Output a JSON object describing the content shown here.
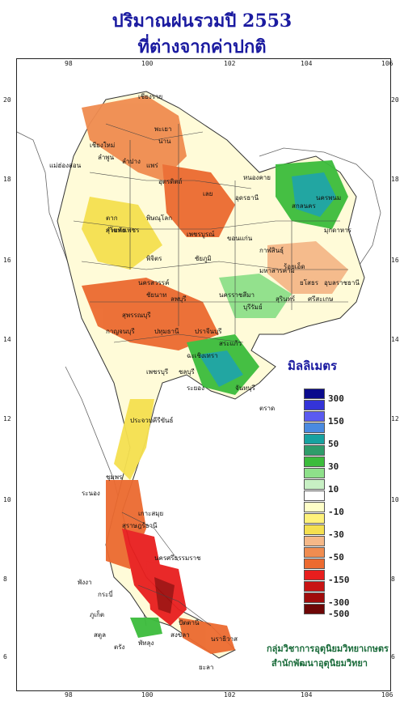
{
  "title_line1": "ปริมาณฝนรวมปี  2553",
  "title_line2": "ที่ต่างจากค่าปกติ",
  "axes": {
    "x_ticks": [
      "98",
      "100",
      "102",
      "104",
      "106"
    ],
    "y_ticks": [
      "20",
      "18",
      "16",
      "14",
      "12",
      "10",
      "8",
      "6"
    ]
  },
  "legend": {
    "title": "มิลลิเมตร",
    "levels": [
      {
        "label": "300",
        "color": "#0a0a8c"
      },
      {
        "label": "",
        "color": "#3434d8"
      },
      {
        "label": "150",
        "color": "#5a5af0"
      },
      {
        "label": "",
        "color": "#4a8ae0"
      },
      {
        "label": "50",
        "color": "#17a2a0"
      },
      {
        "label": "",
        "color": "#2f9c6a"
      },
      {
        "label": "30",
        "color": "#3cbc3c"
      },
      {
        "label": "",
        "color": "#8ee08a"
      },
      {
        "label": "10",
        "color": "#c8f0c4"
      },
      {
        "label": "",
        "color": "#ffffff"
      },
      {
        "label": "-10",
        "color": "#ffffc8"
      },
      {
        "label": "",
        "color": "#fff27a"
      },
      {
        "label": "-30",
        "color": "#f5e050"
      },
      {
        "label": "",
        "color": "#f5b888"
      },
      {
        "label": "-50",
        "color": "#f08c50"
      },
      {
        "label": "",
        "color": "#ec6a30"
      },
      {
        "label": "-150",
        "color": "#e81e1e"
      },
      {
        "label": "",
        "color": "#c81414"
      },
      {
        "label": "-300",
        "color": "#a00c0c"
      },
      {
        "label": "-500",
        "color": "#6e0606"
      }
    ]
  },
  "credit_line1": "กลุ่มวิชาการอุตุนิยมวิทยาเกษตร",
  "credit_line2": "สำนักพัฒนาอุตุนิยมวิทยา",
  "places": [
    "เชียงราย",
    "เชียงใหม่",
    "ลำพูน",
    "ลำปาง",
    "พะเยา",
    "น่าน",
    "แพร่",
    "อุตรดิตถ์",
    "แม่ฮ่องสอน",
    "ตาก",
    "สุโขทัย",
    "พิษณุโลก",
    "เพชรบูรณ์",
    "เลย",
    "หนองคาย",
    "อุดรธานี",
    "สกลนคร",
    "นครพนม",
    "มุกดาหาร",
    "ขอนแก่น",
    "กาฬสินธุ์",
    "ชัยภูมิ",
    "มหาสารคาม",
    "ร้อยเอ็ด",
    "ยโสธร",
    "อุบลราชธานี",
    "นครราชสีมา",
    "บุรีรัมย์",
    "สุรินทร์",
    "ศรีสะเกษ",
    "นครสวรรค์",
    "ลพบุรี",
    "กำแพงเพชร",
    "พิจิตร",
    "ชัยนาท",
    "สุพรรณบุรี",
    "กาญจนบุรี",
    "ปทุมธานี",
    "ปราจีนบุรี",
    "สระแก้ว",
    "ฉะเชิงเทรา",
    "ชลบุรี",
    "ระยอง",
    "จันทบุรี",
    "ตราด",
    "เพชรบุรี",
    "ประจวบคีรีขันธ์",
    "ชุมพร",
    "ระนอง",
    "สุราษฎร์ธานี",
    "เกาะสมุย",
    "กระบี่",
    "พังงา",
    "ภูเก็ต",
    "นครศรีธรรมราช",
    "ตรัง",
    "พัทลุง",
    "สงขลา",
    "สตูล",
    "ปัตตานี",
    "ยะลา",
    "นราธิวาส"
  ]
}
